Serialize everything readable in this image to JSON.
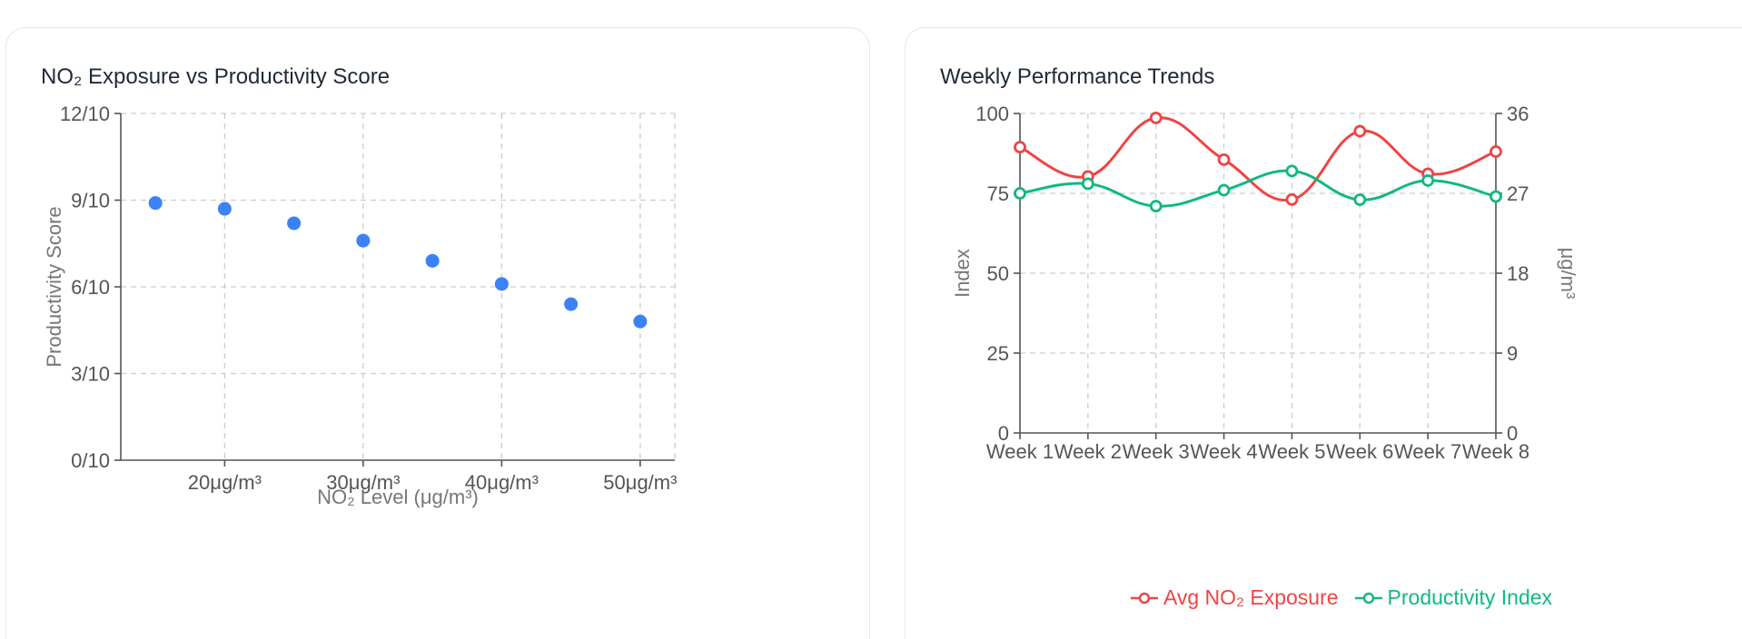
{
  "scatter_card": {
    "title": "NO₂ Exposure vs Productivity Score"
  },
  "line_card": {
    "title": "Weekly Performance Trends"
  },
  "colors": {
    "scatter_point": "#3b82f6",
    "no2_series": "#ef4444",
    "productivity_series": "#10b981"
  },
  "chart_data": [
    {
      "type": "scatter",
      "title": "NO₂ Exposure vs Productivity Score",
      "xlabel": "NO₂ Level (μg/m³)",
      "ylabel": "Productivity Score",
      "x_ticks": [
        "20μg/m³",
        "30μg/m³",
        "40μg/m³",
        "50μg/m³"
      ],
      "x_tick_values": [
        20,
        30,
        40,
        50
      ],
      "y_ticks": [
        "0/10",
        "3/10",
        "6/10",
        "9/10",
        "12/10"
      ],
      "y_tick_values": [
        0,
        3,
        6,
        9,
        12
      ],
      "xlim": [
        12.5,
        52.5
      ],
      "ylim": [
        0,
        12
      ],
      "points": [
        {
          "x": 15,
          "y": 8.9
        },
        {
          "x": 20,
          "y": 8.7
        },
        {
          "x": 25,
          "y": 8.2
        },
        {
          "x": 30,
          "y": 7.6
        },
        {
          "x": 35,
          "y": 6.9
        },
        {
          "x": 40,
          "y": 6.1
        },
        {
          "x": 45,
          "y": 5.4
        },
        {
          "x": 50,
          "y": 4.8
        }
      ],
      "grid": true
    },
    {
      "type": "line",
      "title": "Weekly Performance Trends",
      "categories": [
        "Week 1",
        "Week 2",
        "Week 3",
        "Week 4",
        "Week 5",
        "Week 6",
        "Week 7",
        "Week 8"
      ],
      "ylabel_left": "Index",
      "ylabel_right": "μg/m³",
      "y_left_ticks": [
        "0",
        "25",
        "50",
        "75",
        "100"
      ],
      "y_left_tick_values": [
        0,
        25,
        50,
        75,
        100
      ],
      "y_right_ticks": [
        "0",
        "9",
        "18",
        "27",
        "36"
      ],
      "y_right_tick_values": [
        0,
        9,
        18,
        27,
        36
      ],
      "y_left_range": [
        0,
        100
      ],
      "y_right_range": [
        0,
        36
      ],
      "series": [
        {
          "name": "Avg NO₂ Exposure",
          "axis": "right",
          "values": [
            32.2,
            28.9,
            35.5,
            30.8,
            26.3,
            34.0,
            29.2,
            31.7
          ]
        },
        {
          "name": "Productivity Index",
          "axis": "left",
          "values": [
            75,
            78,
            71,
            76,
            82,
            73,
            79,
            74
          ]
        }
      ],
      "legend_position": "bottom-center",
      "grid": true
    }
  ]
}
